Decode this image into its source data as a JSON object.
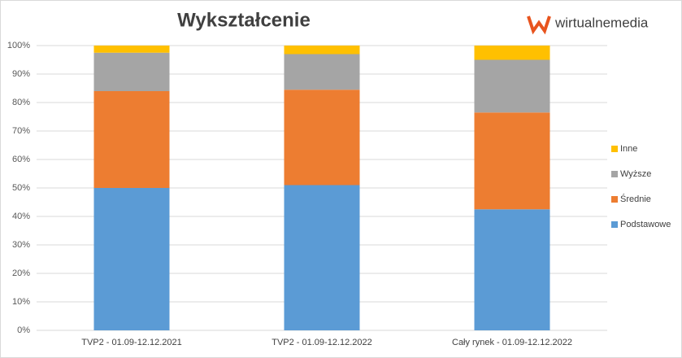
{
  "chart_data": {
    "type": "stacked_bar",
    "title": "Wykształcenie",
    "logo": "wirtualnemedia",
    "categories": [
      "TVP2 - 01.09-12.12.2021",
      "TVP2 - 01.09-12.12.2022",
      "Cały rynek - 01.09-12.12.2022"
    ],
    "series": [
      {
        "name": "Podstawowe",
        "color": "#5b9bd5",
        "values": [
          50,
          51,
          42.5
        ]
      },
      {
        "name": "Średnie",
        "color": "#ed7d31",
        "values": [
          34,
          33.5,
          34
        ]
      },
      {
        "name": "Wyższe",
        "color": "#a5a5a5",
        "values": [
          13.5,
          12.5,
          18.5
        ]
      },
      {
        "name": "Inne",
        "color": "#ffc000",
        "values": [
          2.5,
          3,
          5
        ]
      }
    ],
    "ylim": [
      0,
      100
    ],
    "yticks": [
      {
        "value": 0,
        "label": "0%"
      },
      {
        "value": 10,
        "label": "10%"
      },
      {
        "value": 20,
        "label": "20%"
      },
      {
        "value": 30,
        "label": "30%"
      },
      {
        "value": 40,
        "label": "40%"
      },
      {
        "value": 50,
        "label": "50%"
      },
      {
        "value": 60,
        "label": "60%"
      },
      {
        "value": 70,
        "label": "70%"
      },
      {
        "value": 80,
        "label": "80%"
      },
      {
        "value": 90,
        "label": "90%"
      },
      {
        "value": 100,
        "label": "100%"
      }
    ],
    "grid": true,
    "legend": "right"
  }
}
